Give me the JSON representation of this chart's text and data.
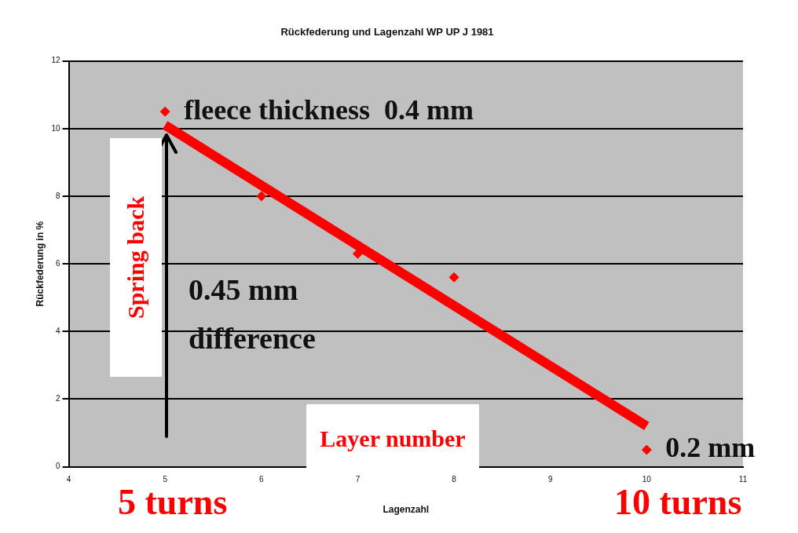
{
  "chart_data": {
    "type": "scatter",
    "title": "Rückfederung und Lagenzahl WP UP J 1981",
    "xlabel": "Lagenzahl",
    "ylabel": "Rückfederung in %",
    "x": [
      5,
      6,
      7,
      8,
      10
    ],
    "series": [
      {
        "type": "scatter",
        "color": "#ff0000",
        "values": [
          10.5,
          8.0,
          6.3,
          5.6,
          0.5
        ],
        "marker": "diamond"
      },
      {
        "type": "line",
        "color": "#ff0000",
        "x": [
          5,
          10
        ],
        "values": [
          10.1,
          1.2
        ],
        "marker": "none"
      }
    ],
    "xlim": [
      4,
      11
    ],
    "xticks": [
      4,
      5,
      6,
      7,
      8,
      9,
      10,
      11
    ],
    "ylim": [
      0,
      12
    ],
    "yticks": [
      0,
      2,
      4,
      6,
      8,
      10,
      12
    ],
    "grid": "y",
    "annotations": [
      {
        "text": "fleece thickness  0.4 mm",
        "x": 5,
        "y": 10.5
      },
      {
        "text": "0.2 mm",
        "x": 10,
        "y": 0.5
      },
      "Spring back",
      "Layer number",
      "0.45  mm difference",
      "5 turns",
      "10 turns"
    ]
  }
}
